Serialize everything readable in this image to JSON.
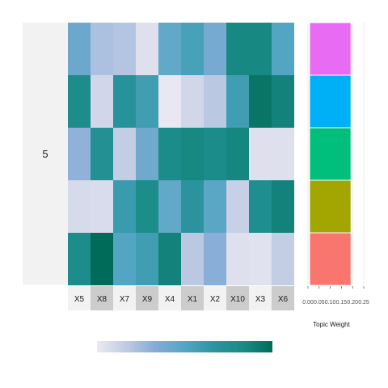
{
  "chart_data": {
    "type": "heatmap",
    "facet_label": "5",
    "columns": [
      "X5",
      "X8",
      "X7",
      "X9",
      "X4",
      "X1",
      "X2",
      "X10",
      "X3",
      "X6"
    ],
    "rows": [
      [
        0.42,
        0.22,
        0.2,
        0.05,
        0.45,
        0.55,
        0.38,
        0.85,
        0.85,
        0.5
      ],
      [
        0.8,
        0.1,
        0.7,
        0.58,
        0.01,
        0.1,
        0.18,
        0.58,
        0.95,
        0.88
      ],
      [
        0.3,
        0.75,
        0.15,
        0.4,
        0.82,
        0.85,
        0.82,
        0.86,
        0.05,
        0.05
      ],
      [
        0.08,
        0.07,
        0.6,
        0.8,
        0.45,
        0.68,
        0.48,
        0.14,
        0.78,
        0.88
      ],
      [
        0.8,
        1.0,
        0.5,
        0.58,
        0.88,
        0.18,
        0.32,
        0.05,
        0.04,
        0.15
      ]
    ],
    "fill_scale": {
      "colors": [
        "#ebe9f3",
        "#bfcbe3",
        "#84abd6",
        "#53a6c3",
        "#2b94a0",
        "#1a8b87",
        "#006b59"
      ]
    },
    "topic_bar": {
      "xlabel": "Topic Weight",
      "tick_labels": [
        "0.00",
        "0.05",
        "0.10",
        "0.15",
        "0.20",
        "0.25"
      ],
      "xlim": [
        0,
        0.25
      ],
      "segments": [
        {
          "color": "#e76bf3",
          "value": 0.2
        },
        {
          "color": "#00b0f6",
          "value": 0.2
        },
        {
          "color": "#00bf7d",
          "value": 0.2
        },
        {
          "color": "#a3a500",
          "value": 0.2
        },
        {
          "color": "#f8766d",
          "value": 0.2
        }
      ]
    }
  }
}
